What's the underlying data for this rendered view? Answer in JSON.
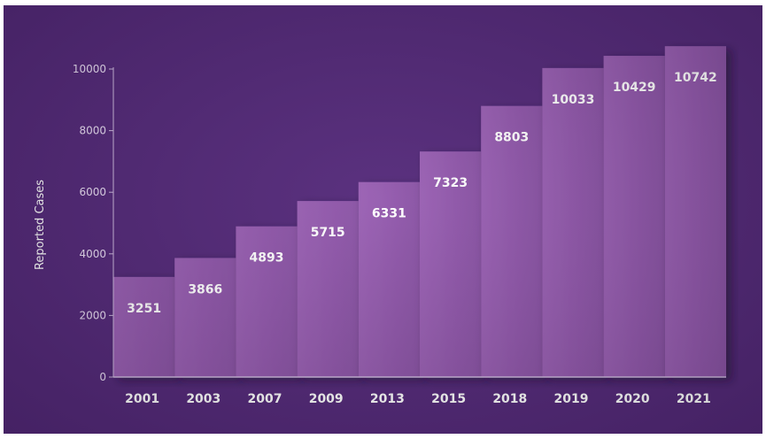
{
  "chart_data": {
    "type": "bar",
    "categories": [
      "2001",
      "2003",
      "2007",
      "2009",
      "2013",
      "2015",
      "2018",
      "2019",
      "2020",
      "2021"
    ],
    "values": [
      3251,
      3866,
      4893,
      5715,
      6331,
      7323,
      8803,
      10033,
      10429,
      10742
    ],
    "data_labels": [
      "3251",
      "3866",
      "4893",
      "5715",
      "6331",
      "7323",
      "8803",
      "10033",
      "10429",
      "10742"
    ],
    "title": "",
    "xlabel": "",
    "ylabel": "Reported Cases",
    "ylim": [
      0,
      10000
    ],
    "yticks": [
      "0",
      "2000",
      "4000",
      "6000",
      "8000",
      "10000"
    ],
    "grid": false,
    "legend": "none",
    "colors": {
      "background": "#54297a",
      "bar": "#8e56a8",
      "bar_edge": "#9c62b6",
      "axis": "#cdb8de",
      "text": "#ffffff"
    }
  }
}
